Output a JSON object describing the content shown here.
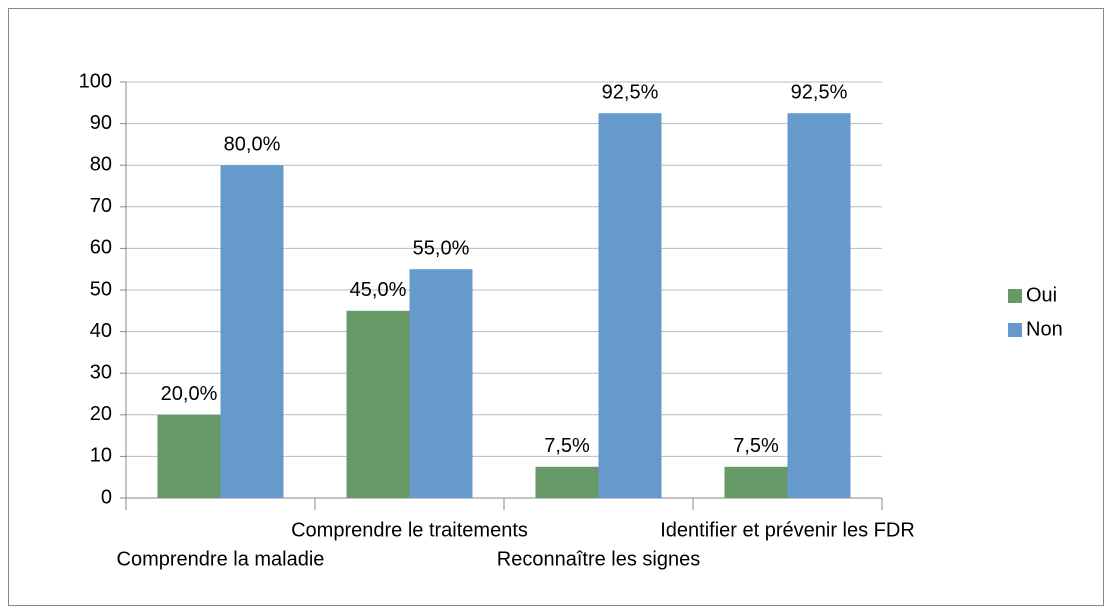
{
  "chart_data": {
    "type": "bar",
    "categories": [
      "Comprendre la maladie",
      "Comprendre le traitements",
      "Reconnaître les signes",
      "Identifier et prévenir les FDR"
    ],
    "series": [
      {
        "name": "Oui",
        "color": "#669966",
        "values": [
          20,
          45,
          7.5,
          7.5
        ],
        "value_labels": [
          "20,0%",
          "45,0%",
          "7,5%",
          "7,5%"
        ]
      },
      {
        "name": "Non",
        "color": "#6699cc",
        "values": [
          80,
          55,
          92.5,
          92.5
        ],
        "value_labels": [
          "80,0%",
          "55,0%",
          "92,5%",
          "92,5%"
        ]
      }
    ],
    "ylim": [
      0,
      100
    ],
    "yticks": [
      0,
      10,
      20,
      30,
      40,
      50,
      60,
      70,
      80,
      90,
      100
    ],
    "grid": true,
    "legend": "right"
  }
}
